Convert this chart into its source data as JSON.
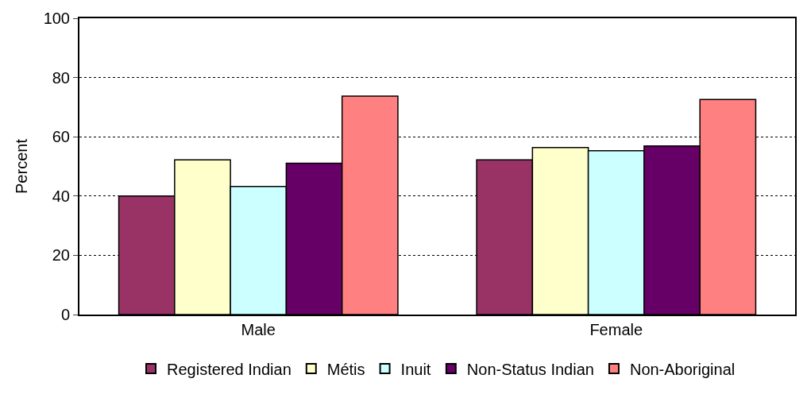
{
  "chart_data": {
    "type": "bar",
    "ylabel": "Percent",
    "categories": [
      "Male",
      "Female"
    ],
    "series": [
      {
        "name": "Registered Indian",
        "color": "#993366",
        "values": [
          40,
          52.2
        ]
      },
      {
        "name": "Métis",
        "color": "#ffffcc",
        "values": [
          52.2,
          56.4
        ]
      },
      {
        "name": "Inuit",
        "color": "#ccffff",
        "values": [
          43.2,
          55.3
        ]
      },
      {
        "name": "Non-Status Indian",
        "color": "#660066",
        "values": [
          51.1,
          56.9
        ]
      },
      {
        "name": "Non-Aboriginal",
        "color": "#ff8080",
        "values": [
          73.7,
          72.6
        ]
      }
    ],
    "ylim": [
      0,
      100
    ],
    "yticks": [
      0,
      20,
      40,
      60,
      80,
      100
    ],
    "grid": "y",
    "legend": "bottom"
  }
}
